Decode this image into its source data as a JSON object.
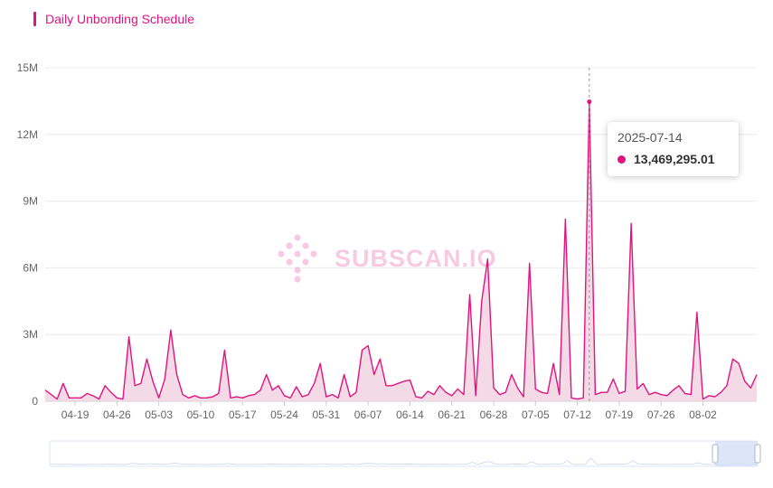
{
  "header": {
    "title": "Daily Unbonding Schedule"
  },
  "watermark": {
    "text": "SUBSCAN.IO"
  },
  "tooltip": {
    "date": "2025-07-14",
    "value": "13,469,295.01"
  },
  "colors": {
    "accent": "#e0147e",
    "area": "#f2d3e2",
    "grid": "#ececec",
    "axis_text": "#666666",
    "slider": "#dde4f5"
  },
  "chart_data": {
    "type": "area",
    "title": "Daily Unbonding Schedule",
    "xlabel": "",
    "ylabel": "",
    "ylim": [
      0,
      15000000
    ],
    "y_ticks": [
      "0",
      "3M",
      "6M",
      "9M",
      "12M",
      "15M"
    ],
    "y_tick_values": [
      0,
      3000000,
      6000000,
      9000000,
      12000000,
      15000000
    ],
    "x_start": "2025-04-14",
    "x_end": "2025-08-08",
    "x_tick_labels": [
      "04-19",
      "04-26",
      "05-03",
      "05-10",
      "05-17",
      "05-24",
      "05-31",
      "06-07",
      "06-14",
      "06-21",
      "06-28",
      "07-05",
      "07-12",
      "07-19",
      "07-26",
      "08-02"
    ],
    "x_tick_index": [
      5,
      12,
      19,
      26,
      33,
      40,
      47,
      54,
      61,
      68,
      75,
      82,
      89,
      96,
      103,
      110
    ],
    "highlight_index": 91,
    "grid": true,
    "series": [
      {
        "values": [
          500000,
          300000,
          100000,
          800000,
          150000,
          150000,
          150000,
          350000,
          250000,
          100000,
          700000,
          400000,
          150000,
          100000,
          2900000,
          700000,
          800000,
          1900000,
          900000,
          150000,
          1000000,
          3200000,
          1200000,
          300000,
          150000,
          250000,
          150000,
          150000,
          200000,
          350000,
          2300000,
          150000,
          200000,
          150000,
          250000,
          300000,
          500000,
          1200000,
          500000,
          700000,
          250000,
          150000,
          650000,
          200000,
          300000,
          800000,
          1700000,
          200000,
          300000,
          150000,
          1200000,
          200000,
          400000,
          2300000,
          2500000,
          1200000,
          1900000,
          700000,
          700000,
          800000,
          900000,
          950000,
          200000,
          150000,
          450000,
          300000,
          700000,
          400000,
          250000,
          550000,
          300000,
          4800000,
          250000,
          4500000,
          6400000,
          600000,
          300000,
          400000,
          1200000,
          600000,
          200000,
          6200000,
          550000,
          400000,
          350000,
          1700000,
          300000,
          8200000,
          150000,
          100000,
          150000,
          13469295.01,
          300000,
          400000,
          400000,
          1000000,
          350000,
          450000,
          8000000,
          550000,
          800000,
          300000,
          400000,
          300000,
          250000,
          500000,
          700000,
          350000,
          300000,
          4000000,
          100000,
          250000,
          200000,
          400000,
          700000,
          1900000,
          1700000,
          900000,
          600000,
          1200000
        ]
      }
    ]
  }
}
